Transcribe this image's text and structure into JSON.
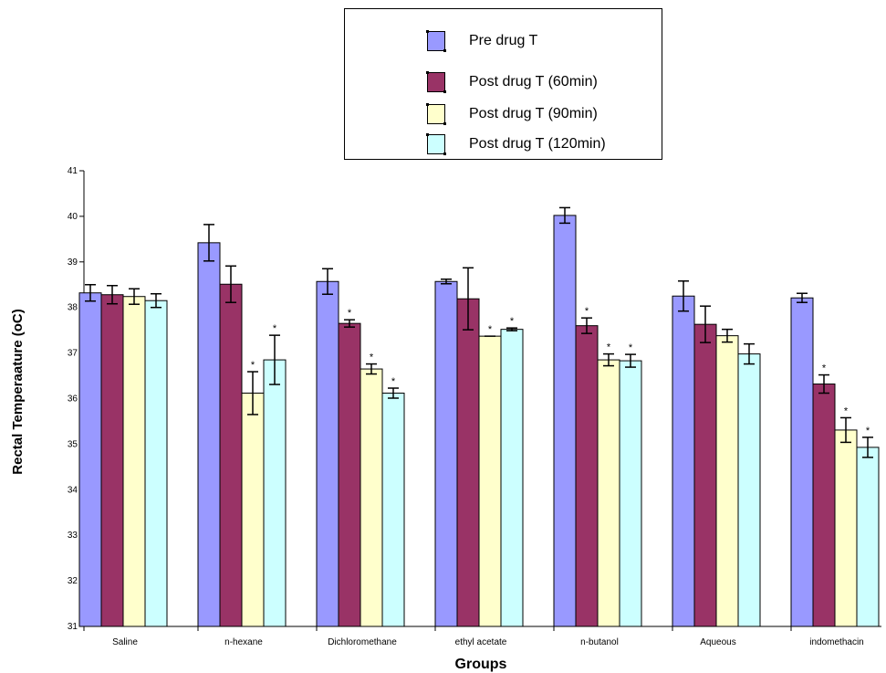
{
  "chart_data": {
    "type": "bar",
    "xlabel": "Groups",
    "ylabel": "Rectal Temperaature (oC)",
    "ylim": [
      31,
      41
    ],
    "yticks": [
      "31",
      "32",
      "33",
      "34",
      "35",
      "36",
      "37",
      "38",
      "39",
      "40",
      "41"
    ],
    "categories": [
      "Saline",
      "n-hexane",
      "Dichloromethane",
      "ethyl acetate",
      "n-butanol",
      "Aqueous",
      "indomethacin"
    ],
    "series": [
      {
        "name": "Pre drug T",
        "color": "#9999ff",
        "values": [
          38.32,
          39.42,
          38.57,
          38.57,
          40.02,
          38.25,
          38.21
        ],
        "errors": [
          0.18,
          0.4,
          0.28,
          0.05,
          0.17,
          0.33,
          0.1
        ],
        "significant": [
          false,
          false,
          false,
          false,
          false,
          false,
          false
        ]
      },
      {
        "name": "Post drug T (60min)",
        "color": "#993366",
        "values": [
          38.28,
          38.51,
          37.65,
          38.19,
          37.6,
          37.63,
          36.32
        ],
        "errors": [
          0.2,
          0.4,
          0.08,
          0.68,
          0.17,
          0.4,
          0.2
        ],
        "significant": [
          false,
          false,
          true,
          false,
          true,
          false,
          true
        ]
      },
      {
        "name": "Post drug T (90min)",
        "color": "#ffffcc",
        "values": [
          38.24,
          36.12,
          36.65,
          37.37,
          36.85,
          37.38,
          35.31
        ],
        "errors": [
          0.17,
          0.47,
          0.11,
          0.0,
          0.13,
          0.14,
          0.27
        ],
        "significant": [
          false,
          true,
          true,
          true,
          true,
          false,
          true
        ]
      },
      {
        "name": "Post drug T (120min)",
        "color": "#ccffff",
        "values": [
          38.15,
          36.85,
          36.12,
          37.52,
          36.83,
          36.98,
          34.93
        ],
        "errors": [
          0.15,
          0.54,
          0.11,
          0.03,
          0.14,
          0.22,
          0.22
        ],
        "significant": [
          false,
          true,
          true,
          true,
          true,
          false,
          true
        ]
      }
    ],
    "significance_marker": "*",
    "legend_position": "top-center"
  }
}
